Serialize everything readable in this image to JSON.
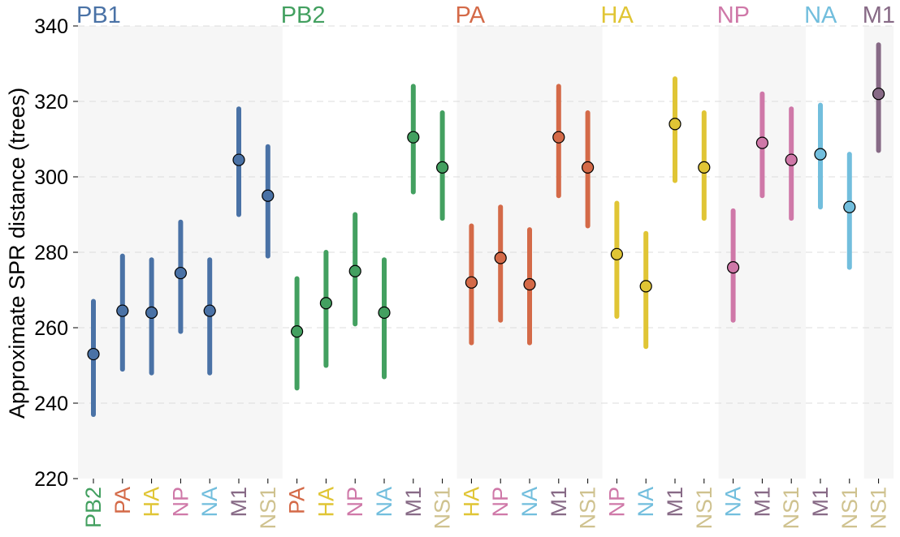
{
  "chart_data": {
    "type": "scatter",
    "ylabel": "Approximate SPR distance (trees)",
    "ylim": [
      220,
      340
    ],
    "yticks": [
      220,
      240,
      260,
      280,
      300,
      320,
      340
    ],
    "grid": "horizontal dashed",
    "colors": {
      "PB1": "#4a72a6",
      "PB2": "#43a060",
      "PA": "#d46a48",
      "HA": "#e0c535",
      "NP": "#cf78a8",
      "NA": "#72bedd",
      "M1": "#876a86",
      "NS1": "#cfc28f"
    },
    "groups": [
      {
        "name": "PB1",
        "points": [
          {
            "target": "PB2",
            "value": 253,
            "low": 237,
            "high": 267
          },
          {
            "target": "PA",
            "value": 264.5,
            "low": 249,
            "high": 279
          },
          {
            "target": "HA",
            "value": 264,
            "low": 248,
            "high": 278
          },
          {
            "target": "NP",
            "value": 274.5,
            "low": 259,
            "high": 288
          },
          {
            "target": "NA",
            "value": 264.5,
            "low": 248,
            "high": 278
          },
          {
            "target": "M1",
            "value": 304.5,
            "low": 290,
            "high": 318
          },
          {
            "target": "NS1",
            "value": 295,
            "low": 279,
            "high": 308
          }
        ]
      },
      {
        "name": "PB2",
        "points": [
          {
            "target": "PA",
            "value": 259,
            "low": 244,
            "high": 273
          },
          {
            "target": "HA",
            "value": 266.5,
            "low": 250,
            "high": 280
          },
          {
            "target": "NP",
            "value": 275,
            "low": 261,
            "high": 290
          },
          {
            "target": "NA",
            "value": 264,
            "low": 247,
            "high": 278
          },
          {
            "target": "M1",
            "value": 310.5,
            "low": 296,
            "high": 324
          },
          {
            "target": "NS1",
            "value": 302.5,
            "low": 289,
            "high": 317
          }
        ]
      },
      {
        "name": "PA",
        "points": [
          {
            "target": "HA",
            "value": 272,
            "low": 256,
            "high": 287
          },
          {
            "target": "NP",
            "value": 278.5,
            "low": 262,
            "high": 292
          },
          {
            "target": "NA",
            "value": 271.5,
            "low": 256,
            "high": 286
          },
          {
            "target": "M1",
            "value": 310.5,
            "low": 295,
            "high": 324
          },
          {
            "target": "NS1",
            "value": 302.5,
            "low": 287,
            "high": 317
          }
        ]
      },
      {
        "name": "HA",
        "points": [
          {
            "target": "NP",
            "value": 279.5,
            "low": 263,
            "high": 293
          },
          {
            "target": "NA",
            "value": 271,
            "low": 255,
            "high": 285
          },
          {
            "target": "M1",
            "value": 314,
            "low": 299,
            "high": 326
          },
          {
            "target": "NS1",
            "value": 302.5,
            "low": 289,
            "high": 317
          }
        ]
      },
      {
        "name": "NP",
        "points": [
          {
            "target": "NA",
            "value": 276,
            "low": 262,
            "high": 291
          },
          {
            "target": "M1",
            "value": 309,
            "low": 295,
            "high": 322
          },
          {
            "target": "NS1",
            "value": 304.5,
            "low": 289,
            "high": 318
          }
        ]
      },
      {
        "name": "NA",
        "points": [
          {
            "target": "M1",
            "value": 306,
            "low": 292,
            "high": 319
          },
          {
            "target": "NS1",
            "value": 292,
            "low": 276,
            "high": 306
          }
        ]
      },
      {
        "name": "M1",
        "points": [
          {
            "target": "NS1",
            "value": 322,
            "low": 307,
            "high": 335
          }
        ]
      }
    ]
  }
}
